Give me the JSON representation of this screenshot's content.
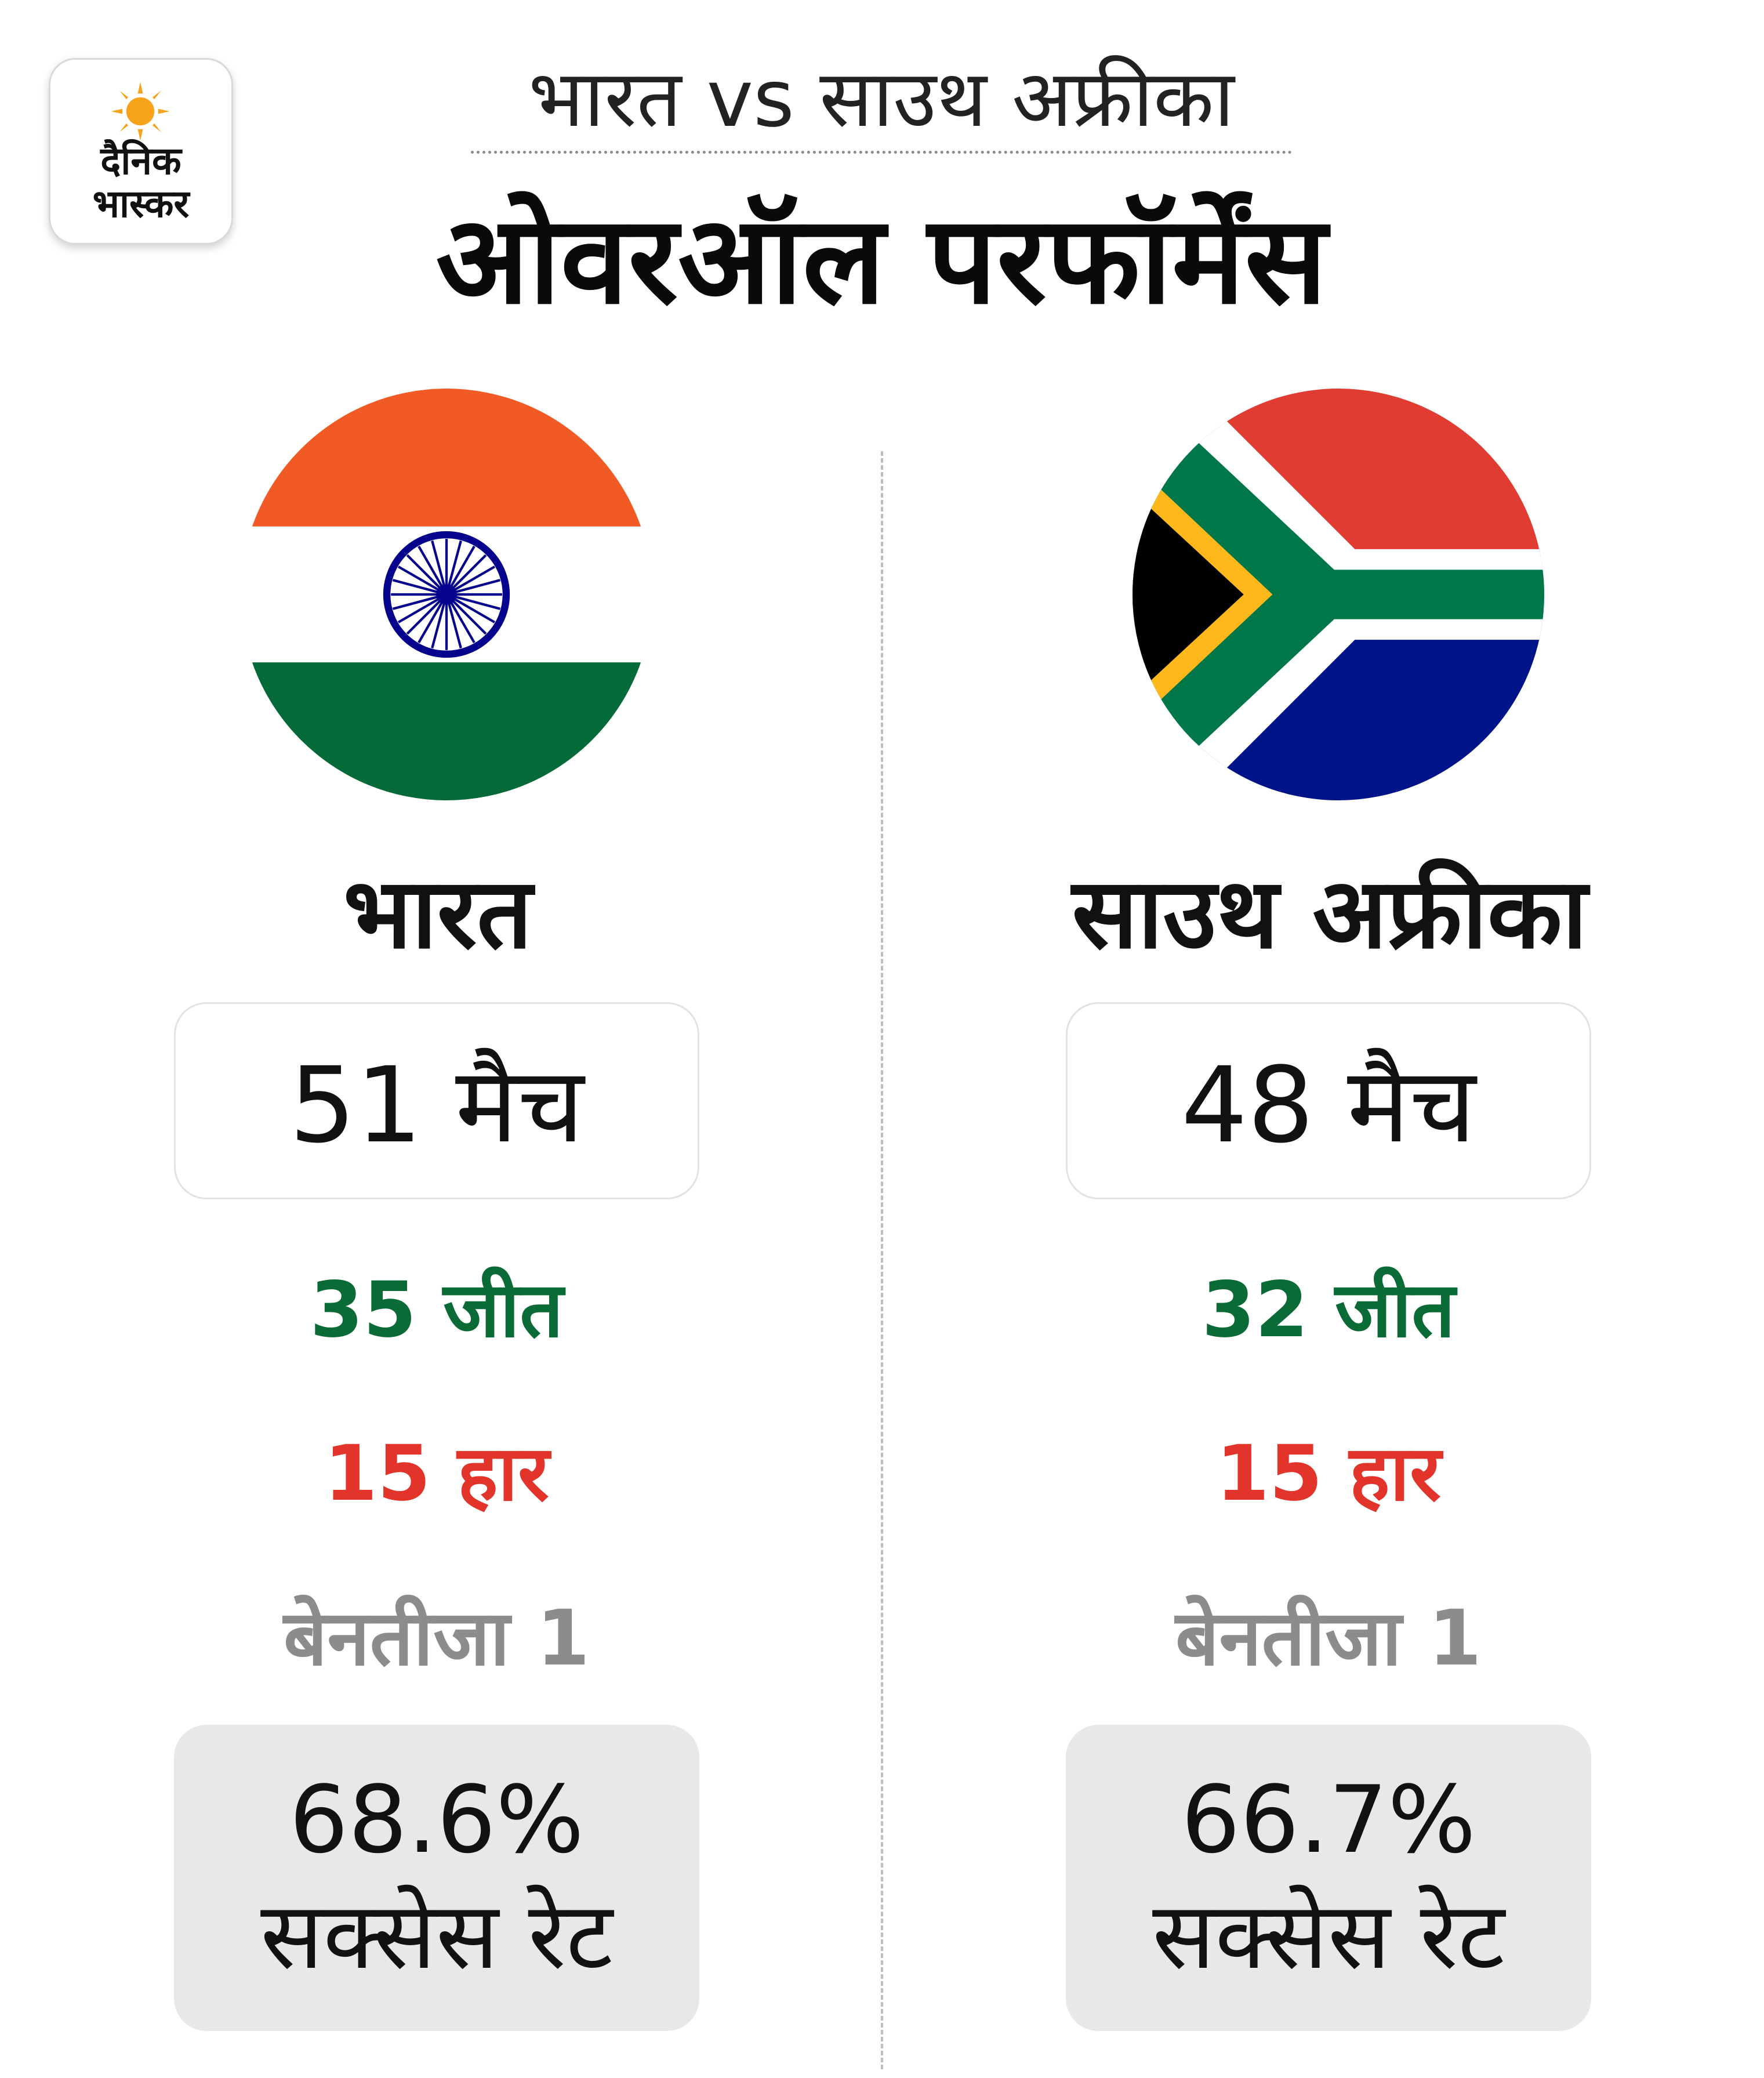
{
  "logo": {
    "line1": "दैनिक",
    "line2": "भास्कर",
    "icon": "sun-icon",
    "color": "#f7a21b"
  },
  "header": {
    "subtitle": "भारत vs साउथ अफ्रीका",
    "title": "ओवरऑल परफॉर्मेंस"
  },
  "teams": [
    {
      "name": "भारत",
      "flag_icon": "india-flag-icon",
      "matches": "51 मैच",
      "wins": "35 जीत",
      "losses": "15 हार",
      "no_result": "बेनतीजा 1",
      "success_rate": "68.6%",
      "success_label": "सक्सेस रेट"
    },
    {
      "name": "साउथ अफ्रीका",
      "flag_icon": "south-africa-flag-icon",
      "matches": "48 मैच",
      "wins": "32 जीत",
      "losses": "15 हार",
      "no_result": "बेनतीजा 1",
      "success_rate": "66.7%",
      "success_label": "सक्सेस रेट"
    }
  ],
  "colors": {
    "win": "#0b6b36",
    "loss": "#e3342b",
    "no_result": "#8c8c8c",
    "rate_box": "#e8e8e8"
  }
}
